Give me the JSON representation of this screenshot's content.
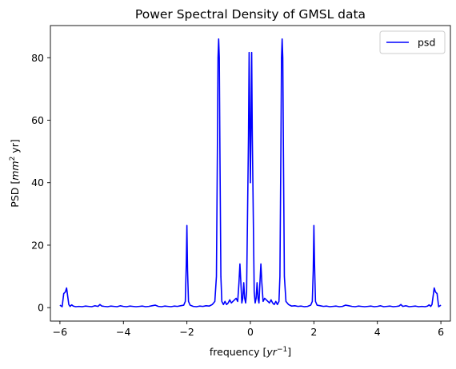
{
  "chart_data": {
    "type": "line",
    "title": "Power Spectral Density of GMSL data",
    "xlabel_main": "frequency [",
    "xlabel_math": "yr",
    "xlabel_sup": "−1",
    "xlabel_end": "]",
    "ylabel_main": "PSD [",
    "ylabel_math": "mm",
    "ylabel_sup": "2",
    "ylabel_end": " yr]",
    "xlim": [
      -6.3,
      6.3
    ],
    "ylim": [
      -4.3,
      90.3
    ],
    "xticks": [
      -6,
      -4,
      -2,
      0,
      2,
      4,
      6
    ],
    "xtick_labels": [
      "−6",
      "−4",
      "−2",
      "0",
      "2",
      "4",
      "6"
    ],
    "yticks": [
      0,
      20,
      40,
      60,
      80
    ],
    "ytick_labels": [
      "0",
      "20",
      "40",
      "60",
      "80"
    ],
    "grid": false,
    "legend_position": "top-right",
    "series": [
      {
        "name": "psd",
        "color": "#0000ff",
        "x": [
          -6.0,
          -5.93,
          -5.88,
          -5.83,
          -5.79,
          -5.76,
          -5.72,
          -5.68,
          -5.63,
          -5.58,
          -5.5,
          -5.4,
          -5.3,
          -5.2,
          -5.1,
          -5.0,
          -4.9,
          -4.8,
          -4.74,
          -4.68,
          -4.6,
          -4.5,
          -4.4,
          -4.3,
          -4.2,
          -4.1,
          -4.0,
          -3.9,
          -3.8,
          -3.7,
          -3.6,
          -3.5,
          -3.4,
          -3.3,
          -3.2,
          -3.1,
          -3.0,
          -2.9,
          -2.8,
          -2.7,
          -2.6,
          -2.5,
          -2.4,
          -2.3,
          -2.2,
          -2.1,
          -2.05,
          -2.02,
          -2.0,
          -1.98,
          -1.95,
          -1.9,
          -1.8,
          -1.7,
          -1.6,
          -1.5,
          -1.4,
          -1.3,
          -1.2,
          -1.12,
          -1.07,
          -1.04,
          -1.02,
          -1.0,
          -0.98,
          -0.96,
          -0.93,
          -0.9,
          -0.85,
          -0.8,
          -0.75,
          -0.7,
          -0.65,
          -0.6,
          -0.55,
          -0.5,
          -0.45,
          -0.4,
          -0.36,
          -0.33,
          -0.3,
          -0.27,
          -0.24,
          -0.21,
          -0.18,
          -0.15,
          -0.12,
          -0.09,
          -0.06,
          -0.04,
          -0.02,
          0.0,
          0.02,
          0.04,
          0.06,
          0.09,
          0.12,
          0.15,
          0.18,
          0.21,
          0.24,
          0.27,
          0.3,
          0.33,
          0.36,
          0.4,
          0.45,
          0.5,
          0.55,
          0.6,
          0.65,
          0.7,
          0.75,
          0.8,
          0.85,
          0.9,
          0.93,
          0.96,
          0.98,
          1.0,
          1.02,
          1.04,
          1.07,
          1.12,
          1.2,
          1.3,
          1.4,
          1.5,
          1.6,
          1.7,
          1.8,
          1.9,
          1.95,
          1.98,
          2.0,
          2.02,
          2.05,
          2.1,
          2.2,
          2.3,
          2.4,
          2.5,
          2.6,
          2.7,
          2.8,
          2.9,
          3.0,
          3.1,
          3.2,
          3.3,
          3.4,
          3.5,
          3.6,
          3.7,
          3.8,
          3.9,
          4.0,
          4.1,
          4.2,
          4.3,
          4.4,
          4.5,
          4.6,
          4.68,
          4.74,
          4.8,
          4.9,
          5.0,
          5.1,
          5.2,
          5.3,
          5.4,
          5.5,
          5.58,
          5.63,
          5.68,
          5.72,
          5.76,
          5.79,
          5.83,
          5.88,
          5.93,
          6.0
        ],
        "y": [
          0.8,
          0.3,
          4.5,
          5.0,
          6.3,
          4.0,
          1.0,
          0.4,
          0.9,
          0.5,
          0.3,
          0.4,
          0.3,
          0.5,
          0.4,
          0.3,
          0.6,
          0.4,
          1.0,
          0.5,
          0.4,
          0.3,
          0.5,
          0.4,
          0.3,
          0.6,
          0.4,
          0.3,
          0.5,
          0.4,
          0.3,
          0.4,
          0.5,
          0.3,
          0.4,
          0.6,
          0.8,
          0.4,
          0.3,
          0.5,
          0.4,
          0.3,
          0.5,
          0.4,
          0.6,
          0.8,
          2.0,
          14.0,
          26.3,
          12.0,
          2.0,
          0.8,
          0.4,
          0.3,
          0.5,
          0.4,
          0.6,
          0.5,
          1.0,
          2.0,
          10.0,
          50.0,
          80.0,
          86.0,
          80.0,
          50.0,
          10.0,
          2.0,
          1.0,
          2.0,
          1.0,
          1.5,
          2.5,
          1.5,
          2.0,
          2.5,
          3.0,
          2.0,
          8.0,
          14.0,
          8.0,
          1.5,
          3.0,
          8.0,
          3.0,
          1.5,
          5.0,
          30.0,
          55.0,
          81.7,
          60.0,
          40.0,
          60.0,
          81.7,
          55.0,
          30.0,
          5.0,
          1.5,
          3.0,
          8.0,
          3.0,
          1.5,
          8.0,
          14.0,
          8.0,
          2.0,
          3.0,
          2.5,
          2.0,
          1.5,
          2.5,
          1.5,
          1.0,
          2.0,
          1.0,
          2.0,
          10.0,
          50.0,
          80.0,
          86.0,
          80.0,
          50.0,
          10.0,
          2.0,
          1.0,
          0.5,
          0.6,
          0.4,
          0.5,
          0.3,
          0.4,
          0.8,
          2.0,
          12.0,
          26.3,
          14.0,
          2.0,
          0.8,
          0.6,
          0.4,
          0.5,
          0.3,
          0.4,
          0.5,
          0.3,
          0.4,
          0.8,
          0.6,
          0.4,
          0.3,
          0.5,
          0.4,
          0.3,
          0.4,
          0.5,
          0.3,
          0.4,
          0.6,
          0.3,
          0.4,
          0.5,
          0.3,
          0.4,
          0.5,
          1.0,
          0.4,
          0.6,
          0.3,
          0.4,
          0.5,
          0.3,
          0.4,
          0.3,
          0.5,
          0.9,
          0.4,
          1.0,
          4.0,
          6.3,
          5.0,
          4.5,
          0.3,
          0.8
        ]
      }
    ]
  }
}
